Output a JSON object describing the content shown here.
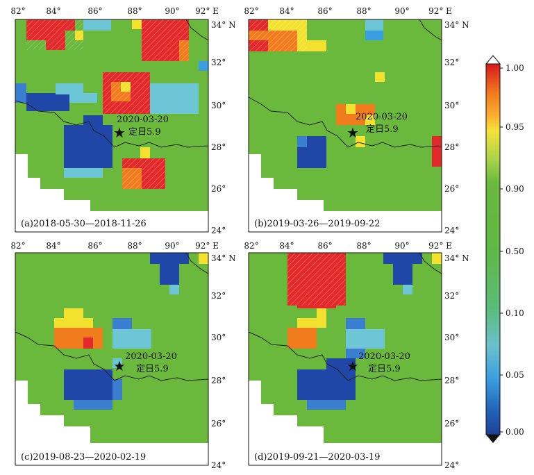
{
  "figure": {
    "panels": [
      {
        "id": "a",
        "label": "(a)2018-05-30—2018-11-26",
        "x_ticks": [
          "82°",
          "84°",
          "86°",
          "88°",
          "90°",
          "92° E"
        ],
        "y_ticks": [
          "34° N",
          "32°",
          "30°",
          "28°",
          "26°",
          "24°"
        ]
      },
      {
        "id": "b",
        "label": "(b)2019-03-26—2019-09-22",
        "x_ticks": [
          "82°",
          "84°",
          "86°",
          "88°",
          "90°",
          "92° E"
        ],
        "y_ticks": [
          "34° N",
          "32°",
          "30°",
          "28°",
          "26°",
          "24°"
        ]
      },
      {
        "id": "c",
        "label": "(c)2019-08-23—2020-02-19",
        "x_ticks": [
          "82°",
          "84°",
          "86°",
          "88°",
          "90°",
          "92° E"
        ],
        "y_ticks": [
          "34° N",
          "32°",
          "30°",
          "28°",
          "26°",
          "24°"
        ]
      },
      {
        "id": "d",
        "label": "(d)2019-09-21—2020-03-19",
        "x_ticks": [
          "82°",
          "84°",
          "86°",
          "88°",
          "90°",
          "92° E"
        ],
        "y_ticks": [
          "34° N",
          "32°",
          "30°",
          "28°",
          "26°",
          "24°"
        ]
      }
    ],
    "earthquake": {
      "date": "2020-03-20",
      "name": "定日5.9",
      "lon": 87.4,
      "lat": 28.6
    },
    "colorbar": {
      "ticks": [
        "1.00",
        "0.95",
        "0.90",
        "0.50",
        "0.10",
        "0.05",
        "0.00"
      ],
      "colors": [
        "#d7191c",
        "#f07c1e",
        "#fdae30",
        "#f5e33a",
        "#a8d24a",
        "#6ab83c",
        "#5fb846",
        "#5cbb7a",
        "#6cc0cc",
        "#3a9ee0",
        "#2266b8",
        "#1f3f9a"
      ]
    }
  },
  "style": {
    "land_green": "#6ab83c",
    "red": "#e32a2a",
    "orange": "#f07c1e",
    "yellow": "#f2e12e",
    "dark_blue": "#2047a8",
    "mid_blue": "#3a7ed0",
    "cyan": "#6cc6d6",
    "border_line": "#222222"
  }
}
